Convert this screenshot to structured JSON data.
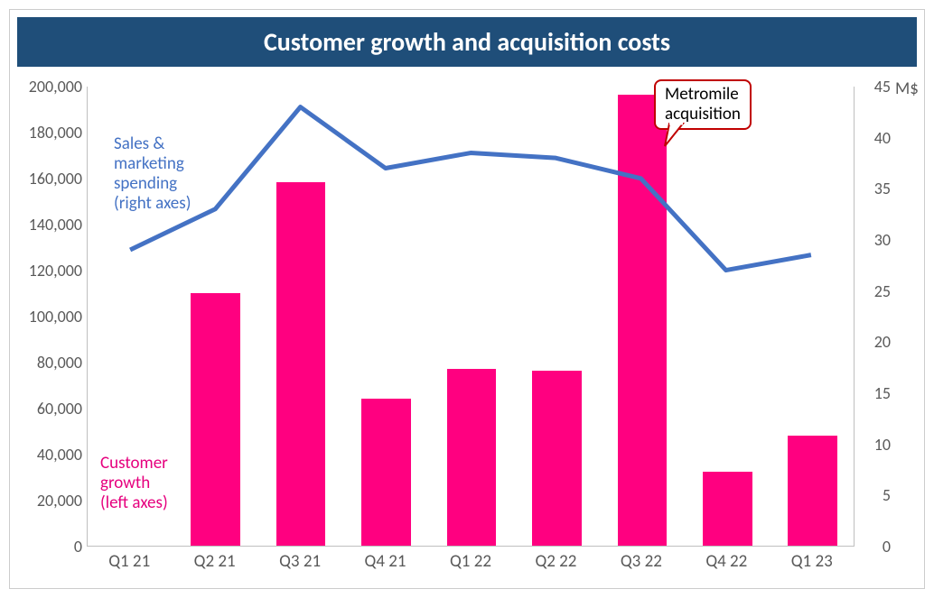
{
  "chart": {
    "type": "combo-bar-line",
    "title": "Customer growth and acquisition costs",
    "title_bg": "#1f4e79",
    "title_color": "#ffffff",
    "title_fontsize": 28,
    "background": "#ffffff",
    "border_color": "#cccccc",
    "axis_color": "#bfbfbf",
    "tick_label_color": "#595959",
    "tick_fontsize": 18,
    "categories": [
      "Q1 21",
      "Q2 21",
      "Q3 21",
      "Q4 21",
      "Q1 22",
      "Q2 22",
      "Q3 22",
      "Q4 22",
      "Q1 23"
    ],
    "left_axis": {
      "min": 0,
      "max": 200000,
      "step": 20000,
      "labels": [
        "0",
        "20,000",
        "40,000",
        "60,000",
        "80,000",
        "100,000",
        "120,000",
        "140,000",
        "160,000",
        "180,000",
        "200,000"
      ]
    },
    "right_axis": {
      "min": 0,
      "max": 45,
      "step": 5,
      "labels": [
        "0",
        "5",
        "10",
        "15",
        "20",
        "25",
        "30",
        "35",
        "40",
        "45"
      ],
      "unit": "M$"
    },
    "bars": {
      "label": "Customer growth (left axes)",
      "label_color": "#e6007e",
      "color": "#ff0080",
      "width_ratio": 0.58,
      "values": [
        0,
        110000,
        158000,
        64000,
        77000,
        76000,
        196000,
        32000,
        48000
      ]
    },
    "line": {
      "label": "Sales & marketing spending (right axes)",
      "label_color": "#4472c4",
      "color": "#4472c4",
      "width": 5,
      "values": [
        29,
        33,
        43,
        37,
        38.5,
        38,
        36,
        27,
        28.5
      ]
    },
    "callout": {
      "text_line1": "Metromile",
      "text_line2": "acquisition",
      "border_color": "#c00000",
      "bg": "#ffffff",
      "points_to_category_index": 6
    },
    "series_label_bars_line1": "Customer",
    "series_label_bars_line2": "growth",
    "series_label_bars_line3": "(left axes)",
    "series_label_line_line1": "Sales &",
    "series_label_line_line2": "marketing",
    "series_label_line_line3": "spending",
    "series_label_line_line4": "(right axes)"
  }
}
